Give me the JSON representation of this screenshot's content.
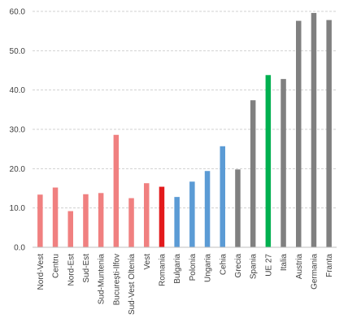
{
  "chart_data": {
    "type": "bar",
    "categories": [
      "Nord-Vest",
      "Centru",
      "Nord-Est",
      "Sud-Est",
      "Sud-Muntenia",
      "București-Ilfov",
      "Sud-Vest Oltenia",
      "Vest",
      "Romania",
      "Bulgaria",
      "Polonia",
      "Ungaria",
      "Cehia",
      "Grecia",
      "Spania",
      "UE 27",
      "Italia",
      "Austria",
      "Germania",
      "Franta"
    ],
    "values": [
      13.4,
      15.2,
      9.2,
      13.5,
      13.8,
      28.6,
      12.5,
      16.3,
      15.4,
      12.8,
      16.7,
      19.4,
      25.7,
      19.8,
      37.4,
      43.8,
      42.8,
      57.6,
      59.6,
      57.8
    ],
    "colors": [
      "#f08080",
      "#f08080",
      "#f08080",
      "#f08080",
      "#f08080",
      "#f08080",
      "#f08080",
      "#f08080",
      "#e31a1c",
      "#5b9bd5",
      "#5b9bd5",
      "#5b9bd5",
      "#5b9bd5",
      "#808080",
      "#808080",
      "#00b050",
      "#808080",
      "#808080",
      "#808080",
      "#808080"
    ],
    "title": "",
    "xlabel": "",
    "ylabel": "",
    "ylim": [
      0,
      60
    ],
    "yticks": [
      "0.0",
      "10.0",
      "20.0",
      "30.0",
      "40.0",
      "50.0",
      "60.0"
    ],
    "grid": true
  }
}
